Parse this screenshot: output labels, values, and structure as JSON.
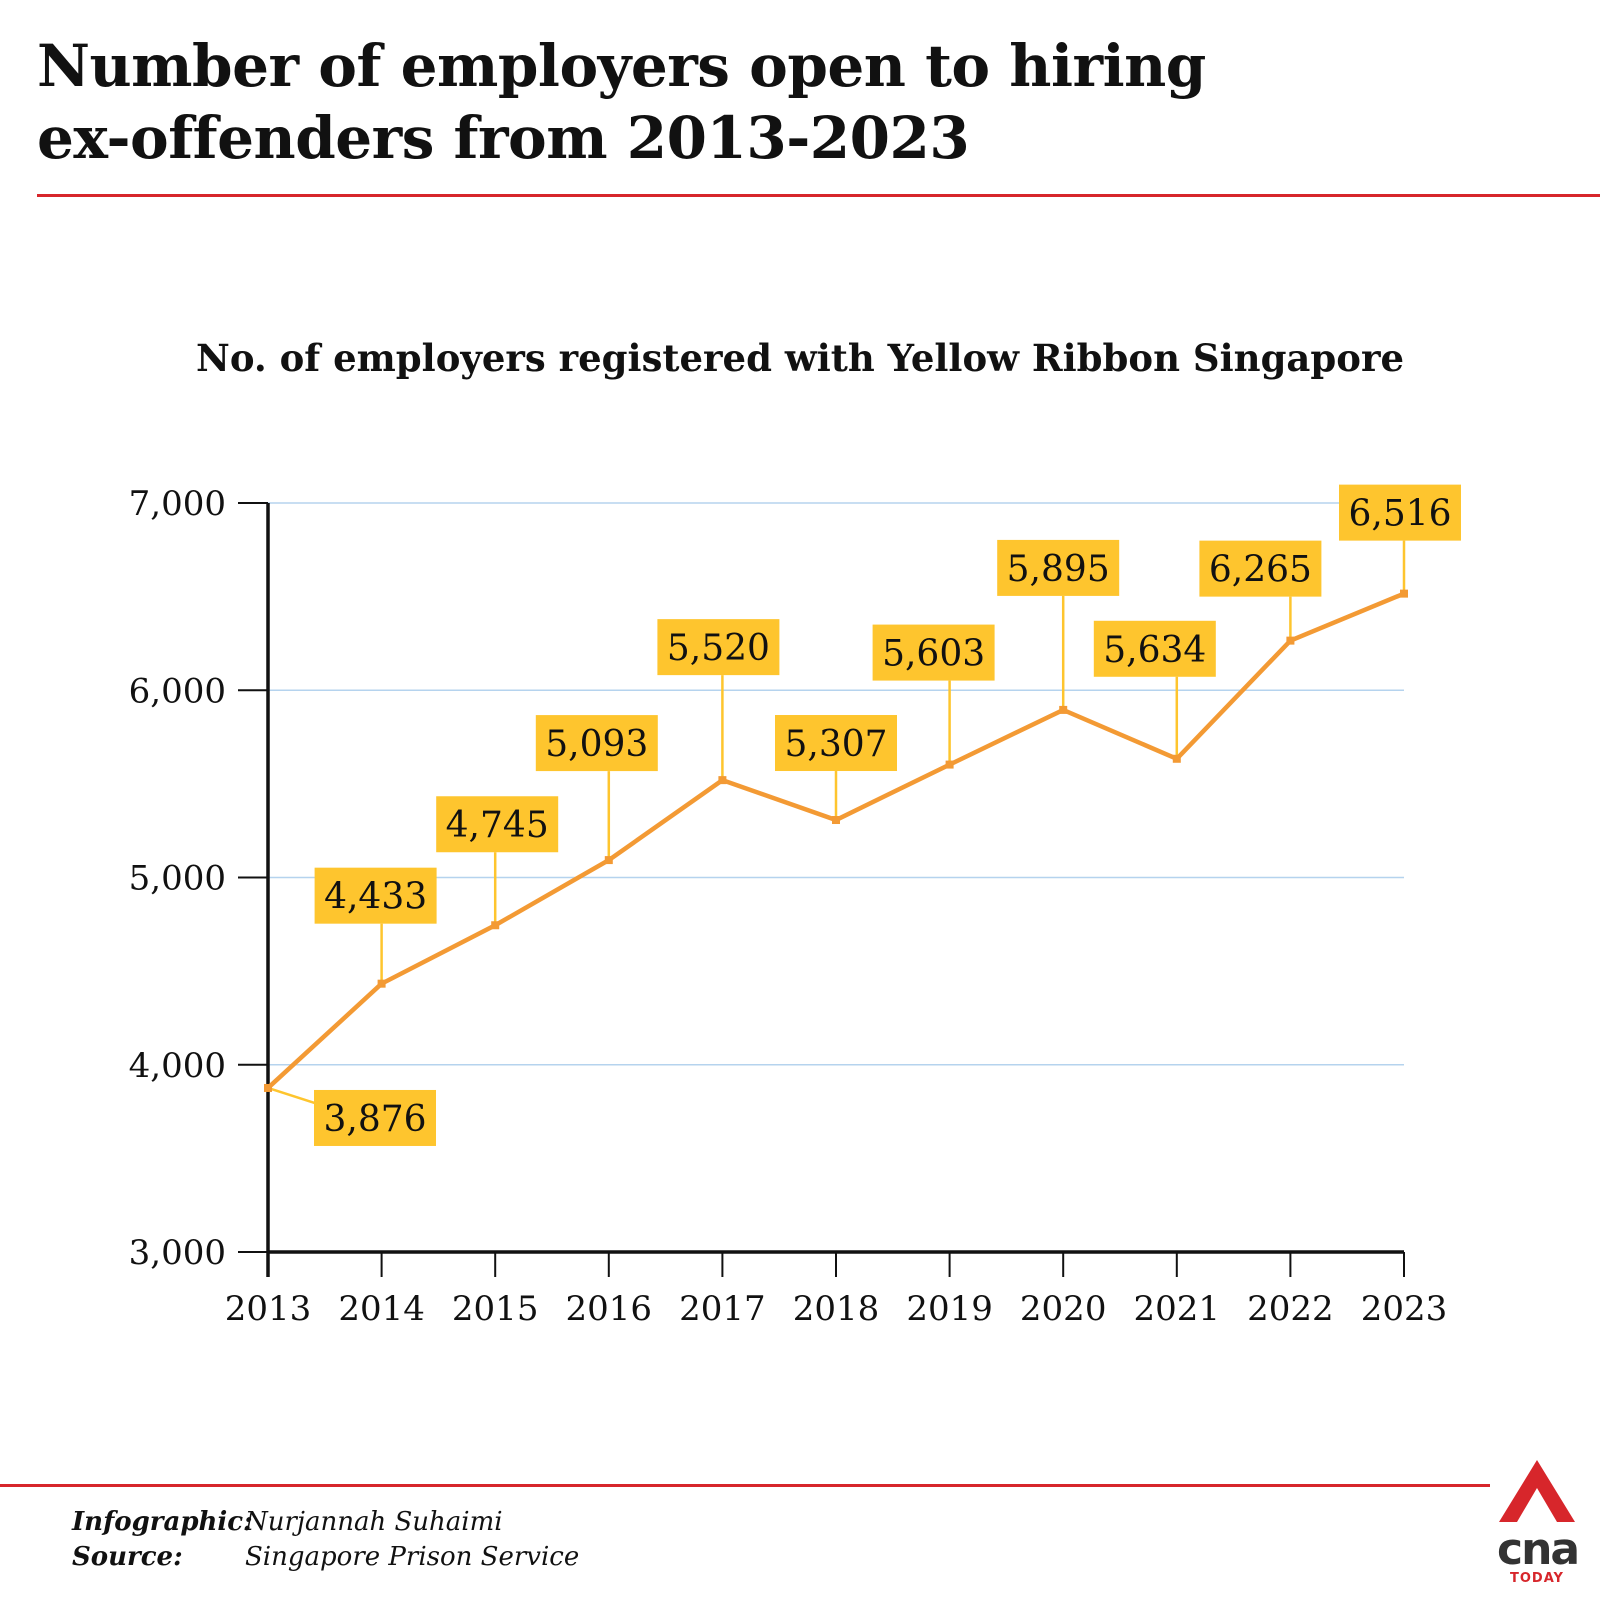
{
  "title": {
    "line1": "Number of employers open to hiring",
    "line2": "ex-offenders from 2013-2023"
  },
  "chart_data": {
    "type": "line",
    "title": "No. of employers registered with Yellow Ribbon Singapore",
    "categories": [
      "2013",
      "2014",
      "2015",
      "2016",
      "2017",
      "2018",
      "2019",
      "2020",
      "2021",
      "2022",
      "2023"
    ],
    "values": [
      3876,
      4433,
      4745,
      5093,
      5520,
      5307,
      5603,
      5895,
      5634,
      6265,
      6516
    ],
    "value_labels": [
      "3,876",
      "4,433",
      "4,745",
      "5,093",
      "5,520",
      "5,307",
      "5,603",
      "5,895",
      "5,634",
      "6,265",
      "6,516"
    ],
    "y_ticks": [
      "3,000",
      "4,000",
      "5,000",
      "6,000",
      "7,000"
    ],
    "ylim": [
      3000,
      7000
    ],
    "grid": true,
    "colors": {
      "line": "#f39a34",
      "label_box": "#fec52e",
      "leader": "#fec52e",
      "grid": "#b5d3ee",
      "axis": "#111111"
    }
  },
  "footer": {
    "infographic_label": "Infographic:",
    "infographic_value": "Nurjannah Suhaimi",
    "source_label": "Source:",
    "source_value": "Singapore Prison Service"
  },
  "logo": {
    "word": "cna",
    "sub": "TODAY",
    "icon": "cna-a-logo-icon",
    "color": "#d7262b"
  }
}
